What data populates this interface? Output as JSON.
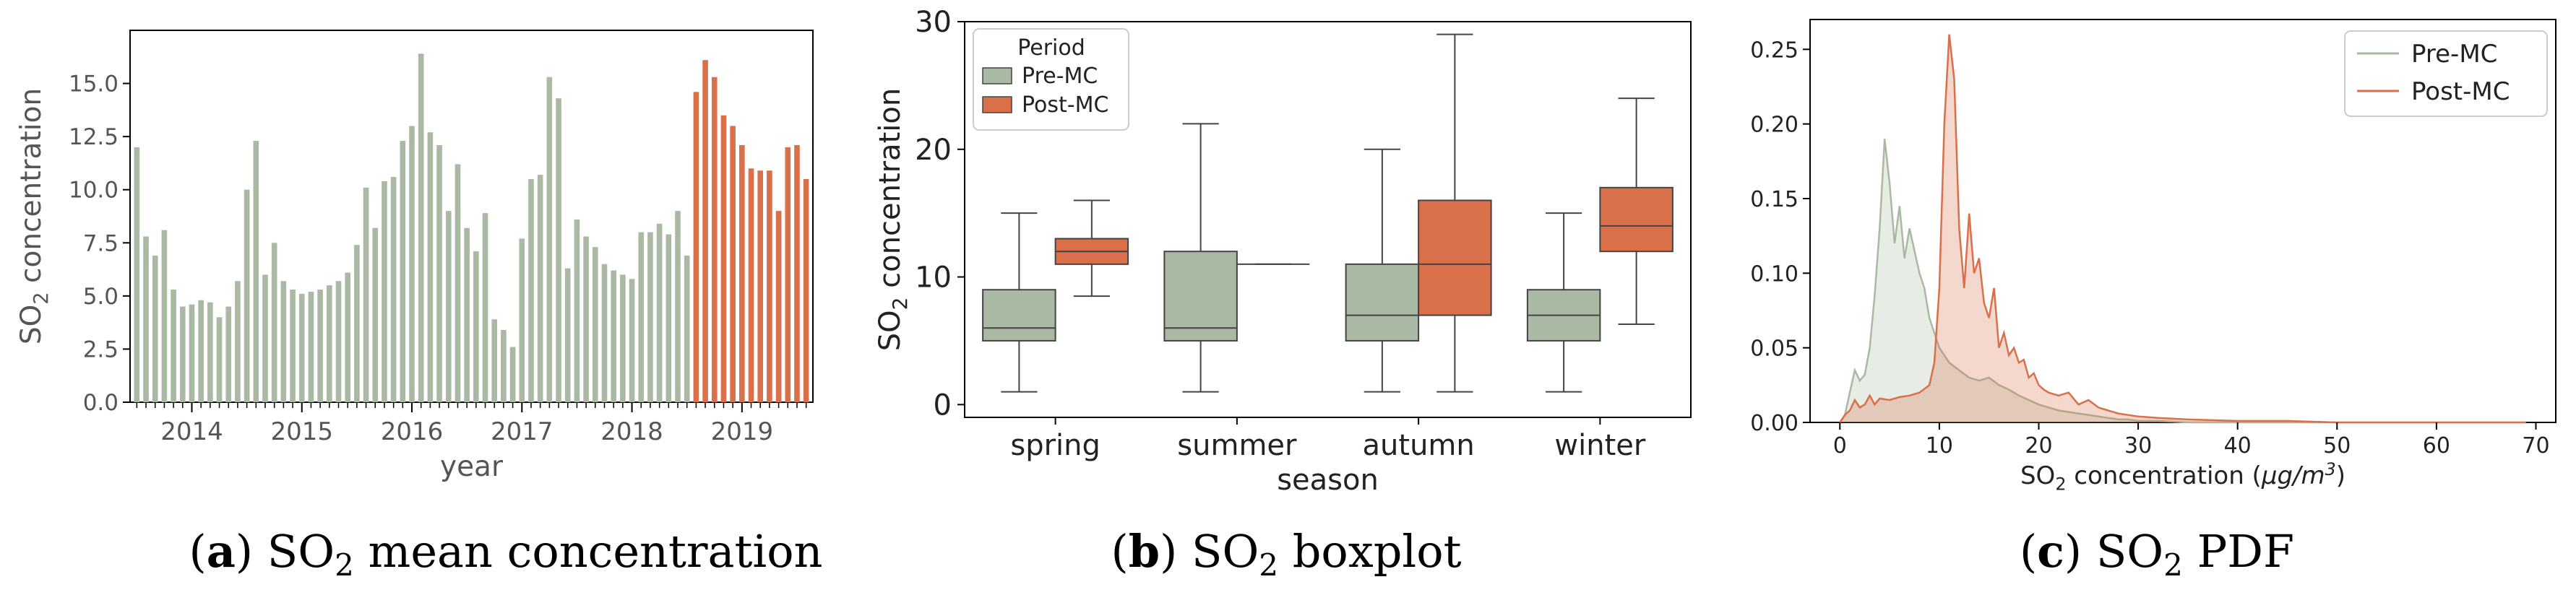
{
  "colors": {
    "pre": "#a9b9a3",
    "post": "#d9704a",
    "axis": "#000000",
    "text_grey": "#555555",
    "text_dark": "#222222",
    "box_edge": "#444444"
  },
  "captions": {
    "a": {
      "label": "a",
      "text_pre": "SO",
      "sub": "2",
      "text_post": " mean concentration"
    },
    "b": {
      "label": "b",
      "text_pre": "SO",
      "sub": "2",
      "text_post": " boxplot"
    },
    "c": {
      "label": "c",
      "text_pre": "SO",
      "sub": "2",
      "text_post": " PDF"
    }
  },
  "chart_data": [
    {
      "id": "a",
      "type": "bar",
      "xlabel": "year",
      "ylabel": {
        "pre": "SO",
        "sub": "2",
        "post": " concentration"
      },
      "ylim": [
        0,
        17.5
      ],
      "yticks": [
        0.0,
        2.5,
        5.0,
        7.5,
        10.0,
        12.5,
        15.0
      ],
      "ytick_labels": [
        "0.0",
        "2.5",
        "5.0",
        "7.5",
        "10.0",
        "12.5",
        "15.0"
      ],
      "xtick_labels": [
        "2014",
        "2015",
        "2016",
        "2017",
        "2018",
        "2019"
      ],
      "start": "2013-07",
      "post_start_index": 61,
      "values": [
        12.0,
        7.8,
        6.9,
        8.1,
        5.3,
        4.5,
        4.6,
        4.8,
        4.7,
        4.0,
        4.5,
        5.7,
        10.0,
        12.3,
        6.0,
        7.5,
        5.7,
        5.3,
        5.1,
        5.2,
        5.3,
        5.5,
        5.7,
        6.1,
        7.4,
        10.1,
        8.2,
        10.4,
        10.6,
        12.3,
        13.0,
        16.4,
        12.7,
        12.1,
        9.0,
        11.2,
        8.2,
        7.1,
        8.9,
        3.9,
        3.4,
        2.6,
        7.7,
        10.5,
        10.7,
        15.3,
        14.3,
        6.3,
        8.6,
        7.8,
        7.3,
        6.5,
        6.2,
        6.0,
        5.8,
        8.0,
        8.0,
        8.4,
        7.9,
        9.0,
        6.9,
        14.6,
        16.1,
        15.3,
        13.5,
        13.0,
        12.1,
        11.0,
        10.9,
        10.9,
        9.0,
        12.0,
        12.1,
        10.5
      ]
    },
    {
      "id": "b",
      "type": "box",
      "xlabel": "season",
      "ylabel": {
        "pre": "SO",
        "sub": "2",
        "post": " concentration"
      },
      "ylim": [
        -1,
        30
      ],
      "yticks": [
        0,
        10,
        20,
        30
      ],
      "categories": [
        "spring",
        "summer",
        "autumn",
        "winter"
      ],
      "legend": {
        "title": "Period",
        "entries": [
          "Pre-MC",
          "Post-MC"
        ],
        "placement": "top-left"
      },
      "series": [
        {
          "name": "Pre-MC",
          "boxes": [
            {
              "whislo": 1,
              "q1": 5,
              "med": 6,
              "q3": 9,
              "whishi": 15
            },
            {
              "whislo": 1,
              "q1": 5,
              "med": 6,
              "q3": 12,
              "whishi": 22
            },
            {
              "whislo": 1,
              "q1": 5,
              "med": 7,
              "q3": 11,
              "whishi": 20
            },
            {
              "whislo": 1,
              "q1": 5,
              "med": 7,
              "q3": 9,
              "whishi": 15
            }
          ]
        },
        {
          "name": "Post-MC",
          "boxes": [
            {
              "whislo": 8.5,
              "q1": 11,
              "med": 12,
              "q3": 13,
              "whishi": 16
            },
            {
              "whislo": 11,
              "q1": 11,
              "med": 11,
              "q3": 11,
              "whishi": 11
            },
            {
              "whislo": 1,
              "q1": 7,
              "med": 11,
              "q3": 16,
              "whishi": 29
            },
            {
              "whislo": 6.3,
              "q1": 12,
              "med": 14,
              "q3": 17,
              "whishi": 24
            }
          ]
        }
      ]
    },
    {
      "id": "c",
      "type": "area",
      "xlabel": {
        "pre": "SO",
        "sub": "2",
        "post": " concentration (",
        "italic": "μg/m",
        "sup": "3",
        "end": ")"
      },
      "xlim": [
        -3,
        72
      ],
      "ylim": [
        0,
        0.27
      ],
      "xticks": [
        0,
        10,
        20,
        30,
        40,
        50,
        60,
        70
      ],
      "yticks": [
        0.0,
        0.05,
        0.1,
        0.15,
        0.2,
        0.25
      ],
      "ytick_labels": [
        "0.00",
        "0.05",
        "0.10",
        "0.15",
        "0.20",
        "0.25"
      ],
      "legend": {
        "entries": [
          "Pre-MC",
          "Post-MC"
        ],
        "placement": "top-right"
      },
      "series": [
        {
          "name": "Pre-MC",
          "x": [
            0,
            0.5,
            1,
            1.5,
            2,
            2.5,
            3,
            3.5,
            4,
            4.5,
            5,
            5.5,
            6,
            6.5,
            7,
            7.5,
            8,
            8.5,
            9,
            9.5,
            10,
            10.5,
            11,
            12,
            13,
            14,
            15,
            16,
            17,
            18,
            19,
            20,
            21,
            22,
            23,
            24,
            25,
            26,
            27,
            28,
            29,
            30,
            32,
            35,
            40,
            45,
            50,
            55,
            60,
            65,
            69
          ],
          "y": [
            0.0,
            0.005,
            0.02,
            0.035,
            0.028,
            0.032,
            0.05,
            0.085,
            0.13,
            0.19,
            0.16,
            0.12,
            0.145,
            0.11,
            0.13,
            0.115,
            0.1,
            0.09,
            0.07,
            0.06,
            0.05,
            0.045,
            0.04,
            0.035,
            0.03,
            0.028,
            0.03,
            0.025,
            0.022,
            0.018,
            0.015,
            0.012,
            0.01,
            0.008,
            0.007,
            0.006,
            0.005,
            0.004,
            0.003,
            0.002,
            0.002,
            0.001,
            0.001,
            0.0,
            0.0,
            0.0,
            0.0,
            0.0,
            0.0,
            0.0,
            0.0
          ]
        },
        {
          "name": "Post-MC",
          "x": [
            0,
            0.5,
            1,
            1.5,
            2,
            2.5,
            3,
            3.5,
            4,
            5,
            6,
            7,
            8,
            9,
            9.5,
            10,
            10.5,
            11,
            11.5,
            12,
            12.5,
            13,
            13.5,
            14,
            14.5,
            15,
            15.5,
            16,
            16.5,
            17,
            17.5,
            18,
            18.5,
            19,
            19.5,
            20,
            20.5,
            21,
            22,
            23,
            24,
            25,
            26,
            27,
            28,
            29,
            30,
            32,
            35,
            40,
            45,
            50,
            55,
            60,
            65,
            69
          ],
          "y": [
            0.0,
            0.005,
            0.008,
            0.015,
            0.01,
            0.012,
            0.018,
            0.012,
            0.016,
            0.015,
            0.017,
            0.018,
            0.02,
            0.025,
            0.04,
            0.09,
            0.2,
            0.26,
            0.23,
            0.13,
            0.09,
            0.14,
            0.1,
            0.11,
            0.08,
            0.07,
            0.09,
            0.05,
            0.06,
            0.045,
            0.05,
            0.04,
            0.042,
            0.03,
            0.033,
            0.025,
            0.022,
            0.02,
            0.018,
            0.02,
            0.012,
            0.015,
            0.01,
            0.008,
            0.006,
            0.005,
            0.004,
            0.003,
            0.002,
            0.001,
            0.001,
            0.0,
            0.0,
            0.0,
            0.0,
            0.0
          ]
        }
      ]
    }
  ]
}
